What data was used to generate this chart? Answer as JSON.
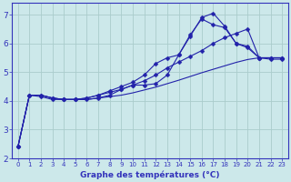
{
  "title": "Graphe des températures (°C)",
  "bg_color": "#cce8ea",
  "grid_color": "#aacccc",
  "line_color": "#2222aa",
  "axis_color": "#3333bb",
  "xlim": [
    -0.5,
    23.5
  ],
  "ylim": [
    2.0,
    7.4
  ],
  "yticks": [
    2,
    3,
    4,
    5,
    6,
    7
  ],
  "xticks": [
    0,
    1,
    2,
    3,
    4,
    5,
    6,
    7,
    8,
    9,
    10,
    11,
    12,
    13,
    14,
    15,
    16,
    17,
    18,
    19,
    20,
    21,
    22,
    23
  ],
  "line_straight": {
    "x": [
      0,
      1,
      2,
      3,
      4,
      5,
      6,
      7,
      8,
      9,
      10,
      11,
      12,
      13,
      14,
      15,
      16,
      17,
      18,
      19,
      20,
      21,
      22,
      23
    ],
    "y": [
      2.4,
      4.2,
      4.2,
      4.1,
      4.05,
      4.05,
      4.05,
      4.1,
      4.15,
      4.2,
      4.28,
      4.38,
      4.48,
      4.6,
      4.72,
      4.85,
      4.98,
      5.1,
      5.22,
      5.34,
      5.44,
      5.5,
      5.5,
      5.5
    ]
  },
  "line_mid": {
    "x": [
      0,
      1,
      2,
      3,
      4,
      5,
      6,
      7,
      8,
      9,
      10,
      11,
      12,
      13,
      14,
      15,
      16,
      17,
      18,
      19,
      20,
      21,
      22,
      23
    ],
    "y": [
      2.4,
      4.2,
      4.2,
      4.1,
      4.05,
      4.05,
      4.1,
      4.2,
      4.3,
      4.4,
      4.55,
      4.7,
      4.9,
      5.15,
      5.35,
      5.55,
      5.75,
      6.0,
      6.2,
      6.35,
      6.5,
      5.5,
      5.45,
      5.45
    ]
  },
  "line_high1": {
    "x": [
      0,
      1,
      2,
      3,
      4,
      5,
      6,
      7,
      8,
      9,
      10,
      11,
      12,
      13,
      14,
      15,
      16,
      17,
      18,
      19,
      20,
      21,
      22,
      23
    ],
    "y": [
      2.4,
      4.2,
      4.15,
      4.05,
      4.05,
      4.05,
      4.1,
      4.2,
      4.35,
      4.5,
      4.65,
      4.9,
      5.3,
      5.5,
      5.6,
      6.3,
      6.85,
      6.65,
      6.55,
      6.0,
      5.85,
      5.5,
      5.5,
      5.5
    ]
  },
  "line_high2": {
    "x": [
      0,
      1,
      2,
      3,
      4,
      5,
      6,
      7,
      8,
      9,
      10,
      11,
      12,
      13,
      14,
      15,
      16,
      17,
      18,
      19,
      20,
      21,
      22,
      23
    ],
    "y": [
      2.4,
      4.2,
      4.2,
      4.1,
      4.05,
      4.05,
      4.05,
      4.1,
      4.2,
      4.4,
      4.55,
      4.55,
      4.6,
      4.9,
      5.6,
      6.25,
      6.9,
      7.05,
      6.6,
      6.0,
      5.9,
      5.5,
      5.5,
      5.5
    ]
  }
}
